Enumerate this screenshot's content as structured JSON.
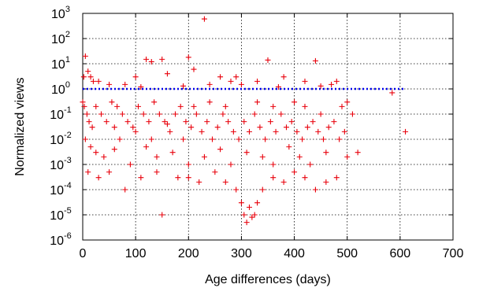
{
  "chart_data": {
    "type": "scatter",
    "title": "",
    "xlabel": "Age differences (days)",
    "ylabel": "Normalized views",
    "xlim": [
      0,
      700
    ],
    "ylim": [
      1e-06,
      1000
    ],
    "yscale": "log",
    "x_ticks": [
      "0",
      "100",
      "200",
      "300",
      "400",
      "500",
      "600",
      "700"
    ],
    "y_tick_exponents": [
      "-6",
      "-5",
      "-4",
      "-3",
      "-2",
      "-1",
      "0",
      "1",
      "2",
      "3"
    ],
    "y_tick_base": "10",
    "grid": true,
    "colors": {
      "points": "#e8000b",
      "reference": "#0000ee"
    },
    "marker": "plus",
    "reference_line": {
      "y": 1,
      "x_range": [
        0,
        610
      ],
      "style": "dotted"
    },
    "series": [
      {
        "points": [
          [
            230,
            600
          ],
          [
            150,
            15
          ],
          [
            120,
            15
          ],
          [
            130,
            12
          ],
          [
            200,
            18
          ],
          [
            350,
            14
          ],
          [
            440,
            13
          ],
          [
            5,
            20
          ],
          [
            10,
            5
          ],
          [
            15,
            3
          ],
          [
            2,
            3
          ],
          [
            20,
            2
          ],
          [
            30,
            2
          ],
          [
            100,
            3
          ],
          [
            160,
            4
          ],
          [
            210,
            6
          ],
          [
            260,
            3
          ],
          [
            280,
            2
          ],
          [
            290,
            3
          ],
          [
            330,
            2
          ],
          [
            380,
            3
          ],
          [
            420,
            2
          ],
          [
            480,
            2
          ],
          [
            50,
            1.5
          ],
          [
            80,
            1.5
          ],
          [
            110,
            1.2
          ],
          [
            190,
            1.3
          ],
          [
            240,
            1.5
          ],
          [
            300,
            1.5
          ],
          [
            370,
            1.2
          ],
          [
            450,
            1.3
          ],
          [
            470,
            1.5
          ],
          [
            585,
            0.7
          ],
          [
            500,
            0.3
          ],
          [
            490,
            0.2
          ],
          [
            510,
            0.1
          ],
          [
            0,
            0.3
          ],
          [
            3,
            0.2
          ],
          [
            8,
            0.1
          ],
          [
            12,
            0.05
          ],
          [
            18,
            0.03
          ],
          [
            25,
            0.2
          ],
          [
            35,
            0.1
          ],
          [
            45,
            0.05
          ],
          [
            55,
            0.3
          ],
          [
            65,
            0.2
          ],
          [
            75,
            0.1
          ],
          [
            85,
            0.05
          ],
          [
            95,
            0.03
          ],
          [
            105,
            0.2
          ],
          [
            115,
            0.1
          ],
          [
            125,
            0.05
          ],
          [
            135,
            0.3
          ],
          [
            145,
            0.1
          ],
          [
            155,
            0.05
          ],
          [
            165,
            0.02
          ],
          [
            175,
            0.1
          ],
          [
            185,
            0.2
          ],
          [
            195,
            0.05
          ],
          [
            205,
            0.03
          ],
          [
            215,
            0.1
          ],
          [
            225,
            0.02
          ],
          [
            235,
            0.05
          ],
          [
            245,
            0.01
          ],
          [
            255,
            0.03
          ],
          [
            265,
            0.1
          ],
          [
            275,
            0.05
          ],
          [
            285,
            0.02
          ],
          [
            295,
            0.01
          ],
          [
            305,
            0.05
          ],
          [
            315,
            0.02
          ],
          [
            325,
            0.1
          ],
          [
            335,
            0.03
          ],
          [
            345,
            0.01
          ],
          [
            355,
            0.05
          ],
          [
            365,
            0.02
          ],
          [
            375,
            0.1
          ],
          [
            385,
            0.03
          ],
          [
            395,
            0.05
          ],
          [
            405,
            0.02
          ],
          [
            415,
            0.01
          ],
          [
            425,
            0.03
          ],
          [
            435,
            0.05
          ],
          [
            445,
            0.02
          ],
          [
            455,
            0.01
          ],
          [
            465,
            0.03
          ],
          [
            475,
            0.05
          ],
          [
            485,
            0.01
          ],
          [
            495,
            0.02
          ],
          [
            520,
            0.003
          ],
          [
            610,
            0.02
          ],
          [
            5,
            0.01
          ],
          [
            15,
            0.005
          ],
          [
            25,
            0.003
          ],
          [
            40,
            0.002
          ],
          [
            60,
            0.004
          ],
          [
            90,
            0.001
          ],
          [
            120,
            0.005
          ],
          [
            140,
            0.002
          ],
          [
            170,
            0.003
          ],
          [
            200,
            0.001
          ],
          [
            230,
            0.002
          ],
          [
            260,
            0.004
          ],
          [
            280,
            0.001
          ],
          [
            310,
            0.003
          ],
          [
            340,
            0.002
          ],
          [
            360,
            0.001
          ],
          [
            390,
            0.005
          ],
          [
            410,
            0.002
          ],
          [
            430,
            0.001
          ],
          [
            460,
            0.003
          ],
          [
            500,
            0.002
          ],
          [
            10,
            0.0005
          ],
          [
            30,
            0.0003
          ],
          [
            50,
            0.0005
          ],
          [
            80,
            0.0001
          ],
          [
            110,
            0.0003
          ],
          [
            140,
            0.0005
          ],
          [
            150,
            1e-05
          ],
          [
            180,
            0.0003
          ],
          [
            220,
            0.0002
          ],
          [
            250,
            0.0005
          ],
          [
            270,
            0.0002
          ],
          [
            290,
            0.0001
          ],
          [
            300,
            3e-05
          ],
          [
            305,
            1e-05
          ],
          [
            310,
            5e-06
          ],
          [
            315,
            2e-05
          ],
          [
            320,
            8e-06
          ],
          [
            325,
            1e-05
          ],
          [
            330,
            3e-05
          ],
          [
            340,
            0.0001
          ],
          [
            360,
            0.0003
          ],
          [
            380,
            0.0002
          ],
          [
            400,
            0.0005
          ],
          [
            420,
            0.0003
          ],
          [
            440,
            0.0001
          ],
          [
            460,
            0.0002
          ],
          [
            480,
            0.0003
          ],
          [
            200,
            0.0003
          ],
          [
            60,
            0.03
          ],
          [
            70,
            0.01
          ],
          [
            100,
            0.02
          ],
          [
            130,
            0.01
          ],
          [
            160,
            0.04
          ],
          [
            190,
            0.01
          ],
          [
            210,
            0.2
          ],
          [
            240,
            0.3
          ],
          [
            270,
            0.2
          ],
          [
            330,
            0.3
          ],
          [
            360,
            0.2
          ],
          [
            400,
            0.3
          ],
          [
            420,
            0.2
          ],
          [
            450,
            0.1
          ]
        ]
      }
    ]
  }
}
